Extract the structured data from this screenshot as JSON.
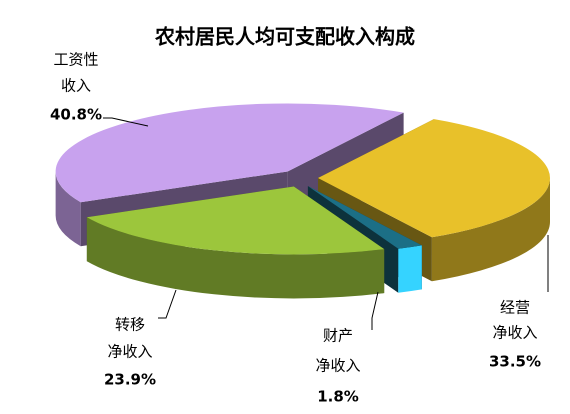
{
  "chart_data": {
    "type": "pie",
    "title": "农村居民人均可支配收入构成",
    "categories": [
      [
        "经营",
        "净收入"
      ],
      [
        "财产",
        "净收入"
      ],
      [
        "转移",
        "净收入"
      ],
      [
        "工资性",
        "收入"
      ]
    ],
    "values": [
      33.5,
      1.8,
      23.9,
      40.8
    ],
    "value_labels": [
      "33.5%",
      "1.8%",
      "23.9%",
      "40.8%"
    ],
    "colors": [
      "#e8c12a",
      "#1c6f86",
      "#9cc63c",
      "#c8a2ee"
    ]
  }
}
